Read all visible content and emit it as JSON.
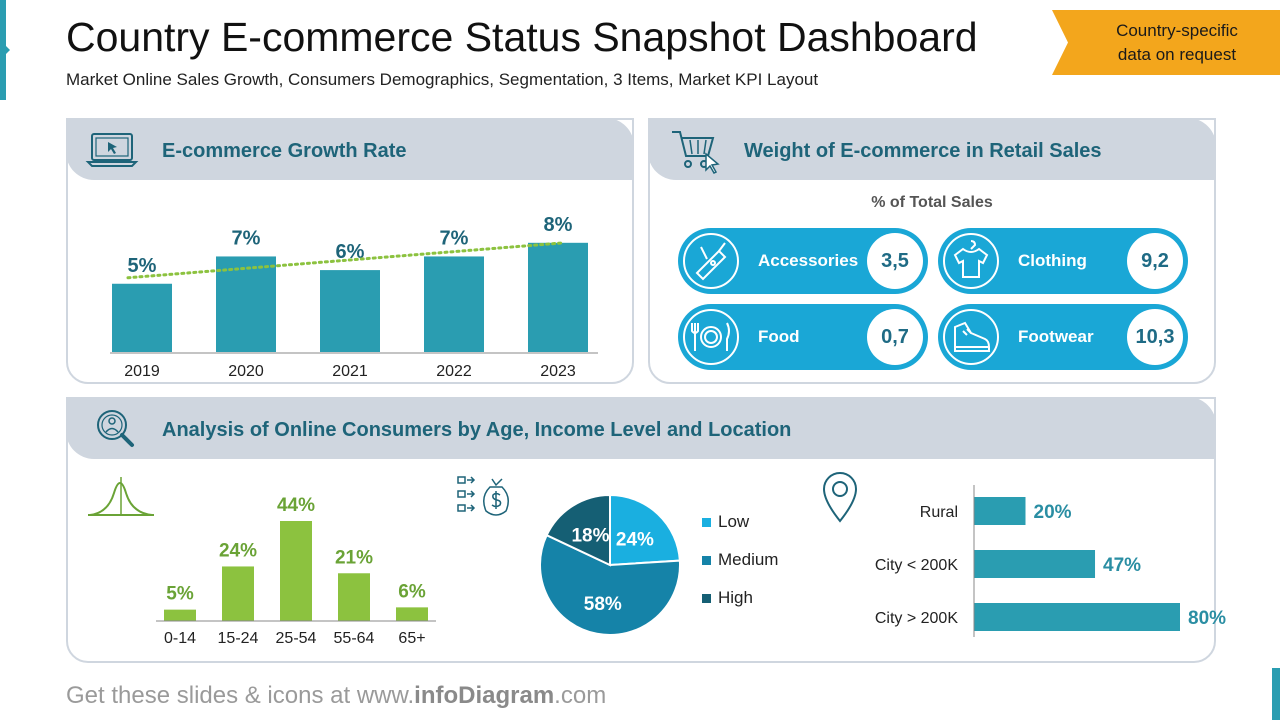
{
  "header": {
    "title": "Country E-commerce Status Snapshot Dashboard",
    "subtitle": "Market Online Sales Growth, Consumers Demographics, Segmentation, 3 Items, Market KPI Layout",
    "badge_line1": "Country-specific",
    "badge_line2": "data on request"
  },
  "growth": {
    "title": "E-commerce Growth Rate",
    "chart_data": {
      "type": "bar",
      "categories": [
        "2019",
        "2020",
        "2021",
        "2022",
        "2023"
      ],
      "values": [
        5,
        7,
        6,
        7,
        8
      ],
      "value_labels": [
        "5%",
        "7%",
        "6%",
        "7%",
        "8%"
      ],
      "trendline": true,
      "ylim": [
        0,
        10
      ]
    }
  },
  "weight": {
    "title": "Weight of E-commerce in Retail Sales",
    "subtitle": "% of Total Sales",
    "items": [
      {
        "label": "Accessories",
        "value": "3,5",
        "icon": "swiss-knife-icon"
      },
      {
        "label": "Clothing",
        "value": "9,2",
        "icon": "tshirt-icon"
      },
      {
        "label": "Food",
        "value": "0,7",
        "icon": "plate-cutlery-icon"
      },
      {
        "label": "Footwear",
        "value": "10,3",
        "icon": "shoe-icon"
      }
    ]
  },
  "analysis": {
    "title": "Analysis of Online Consumers by Age, Income Level and Location",
    "age_chart": {
      "type": "bar",
      "categories": [
        "0-14",
        "15-24",
        "25-54",
        "55-64",
        "65+"
      ],
      "values": [
        5,
        24,
        44,
        21,
        6
      ],
      "value_labels": [
        "5%",
        "24%",
        "44%",
        "21%",
        "6%"
      ],
      "color": "#8cc23f"
    },
    "income_chart": {
      "type": "pie",
      "labels": [
        "Low",
        "Medium",
        "High"
      ],
      "values": [
        24,
        58,
        18
      ],
      "value_labels": [
        "24%",
        "58%",
        "18%"
      ],
      "colors": [
        "#1aafe0",
        "#1583a8",
        "#155f74"
      ]
    },
    "location_chart": {
      "type": "bar",
      "orientation": "horizontal",
      "categories": [
        "Rural",
        "City < 200K",
        "City > 200K"
      ],
      "values": [
        20,
        47,
        80
      ],
      "value_labels": [
        "20%",
        "47%",
        "80%"
      ],
      "color": "#2a9db1"
    }
  },
  "footer": {
    "prefix": "Get these slides & icons at www.",
    "brand": "infoDiagram",
    "suffix": ".com"
  },
  "colors": {
    "teal": "#2a9db1",
    "dark_teal": "#1e6479",
    "green": "#8cc23f",
    "blue": "#1aa7d6",
    "orange": "#f3a61c",
    "panel_header": "#cfd6df"
  }
}
